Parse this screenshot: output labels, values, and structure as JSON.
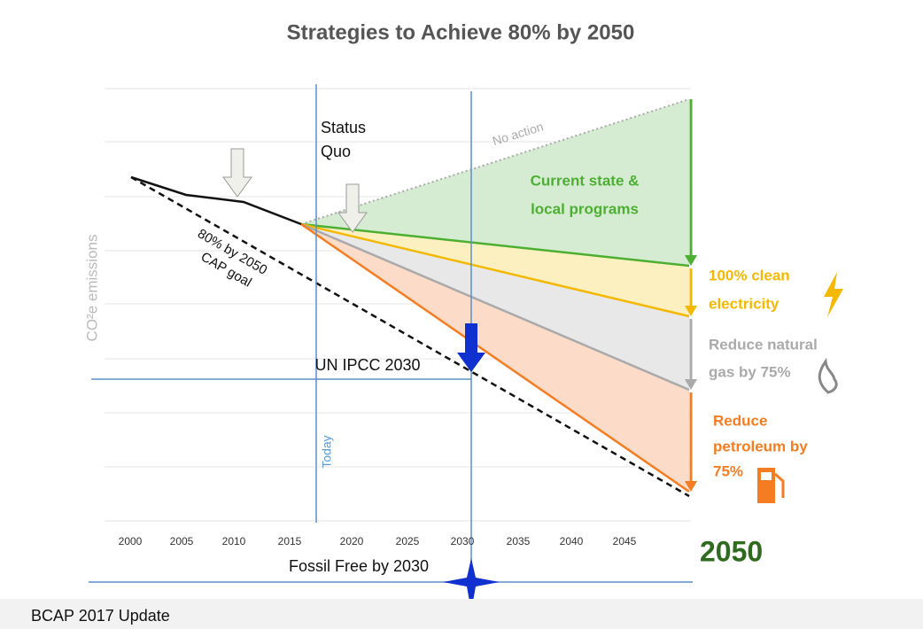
{
  "title": "Strategies to Achieve 80% by 2050",
  "y_axis_label": "CO²e emissions",
  "x_axis_labels": [
    "2000",
    "2005",
    "2010",
    "2015",
    "2020",
    "2025",
    "2030",
    "2035",
    "2040",
    "2045"
  ],
  "end_year": "2050",
  "annotations": {
    "status_quo": [
      "Status",
      "Quo"
    ],
    "no_action": "No action",
    "current_programs": [
      "Current state &",
      "local programs"
    ],
    "clean_electricity": [
      "100% clean",
      "electricity"
    ],
    "natural_gas": [
      "Reduce natural",
      "gas by 75%"
    ],
    "petroleum": [
      "Reduce",
      "petroleum by",
      "75%"
    ],
    "cap_goal": [
      "80% by 2050",
      "CAP goal"
    ],
    "un_ipcc": "UN IPCC 2030",
    "today": "Today",
    "fossil_free": "Fossil Free by 2030"
  },
  "footer": "BCAP 2017 Update"
}
